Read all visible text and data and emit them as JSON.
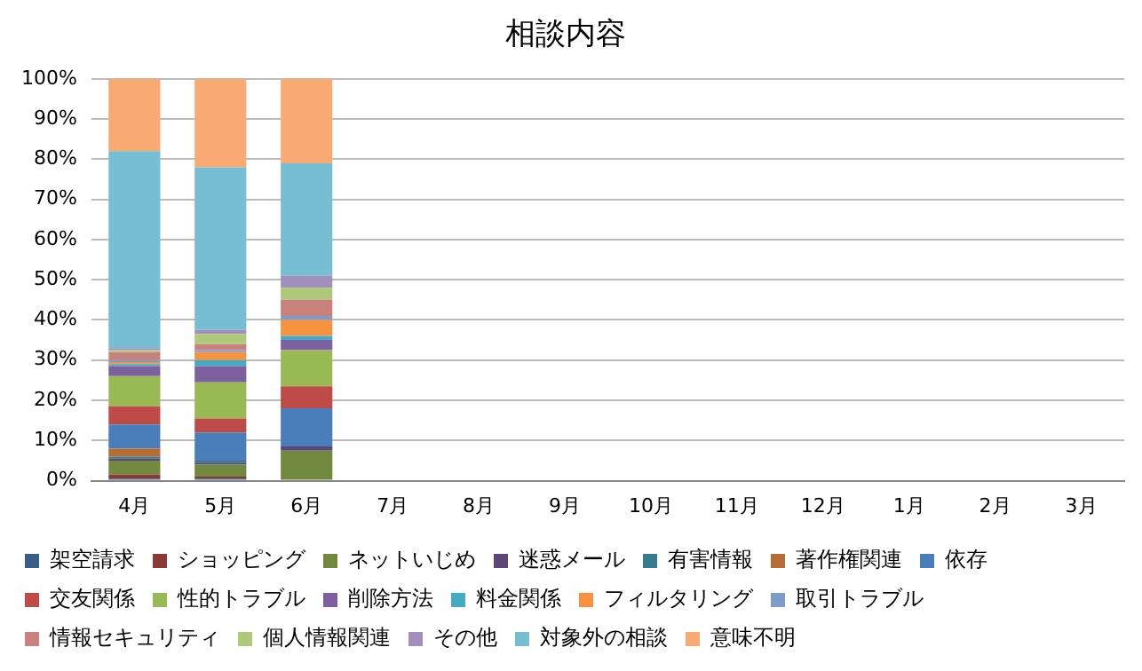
{
  "chart_data": {
    "type": "bar",
    "title": "相談内容",
    "stacked": true,
    "legend": "bottom",
    "grid": "y",
    "categories": [
      "4月",
      "5月",
      "6月",
      "7月",
      "8月",
      "9月",
      "10月",
      "11月",
      "12月",
      "1月",
      "2月",
      "3月"
    ],
    "ylim": [
      0,
      100
    ],
    "yticks": [
      {
        "value": 0,
        "label": "0%"
      },
      {
        "value": 10,
        "label": "10%"
      },
      {
        "value": 20,
        "label": "20%"
      },
      {
        "value": 30,
        "label": "30%"
      },
      {
        "value": 40,
        "label": "40%"
      },
      {
        "value": 50,
        "label": "50%"
      },
      {
        "value": 60,
        "label": "60%"
      },
      {
        "value": 70,
        "label": "70%"
      },
      {
        "value": 80,
        "label": "80%"
      },
      {
        "value": 90,
        "label": "90%"
      },
      {
        "value": 100,
        "label": "100%"
      }
    ],
    "series": [
      {
        "name": "架空請求",
        "color": "#385d8a",
        "values": [
          0.5,
          0.5,
          0,
          null,
          null,
          null,
          null,
          null,
          null,
          null,
          null,
          null
        ]
      },
      {
        "name": "ショッピング",
        "color": "#8c3836",
        "values": [
          1,
          0.5,
          0,
          null,
          null,
          null,
          null,
          null,
          null,
          null,
          null,
          null
        ]
      },
      {
        "name": "ネットいじめ",
        "color": "#71893f",
        "values": [
          3.5,
          3,
          7.5,
          null,
          null,
          null,
          null,
          null,
          null,
          null,
          null,
          null
        ]
      },
      {
        "name": "迷惑メール",
        "color": "#5c4776",
        "values": [
          0.5,
          0.5,
          1,
          null,
          null,
          null,
          null,
          null,
          null,
          null,
          null,
          null
        ]
      },
      {
        "name": "有害情報",
        "color": "#357d91",
        "values": [
          0.5,
          0.5,
          0,
          null,
          null,
          null,
          null,
          null,
          null,
          null,
          null,
          null
        ]
      },
      {
        "name": "著作権関連",
        "color": "#b66d31",
        "values": [
          2,
          0,
          0,
          null,
          null,
          null,
          null,
          null,
          null,
          null,
          null,
          null
        ]
      },
      {
        "name": "依存",
        "color": "#4a7ebb",
        "values": [
          6,
          7,
          9.5,
          null,
          null,
          null,
          null,
          null,
          null,
          null,
          null,
          null
        ]
      },
      {
        "name": "交友関係",
        "color": "#be4b48",
        "values": [
          4.5,
          3.5,
          5.5,
          null,
          null,
          null,
          null,
          null,
          null,
          null,
          null,
          null
        ]
      },
      {
        "name": "性的トラブル",
        "color": "#98b954",
        "values": [
          7.5,
          9,
          9,
          null,
          null,
          null,
          null,
          null,
          null,
          null,
          null,
          null
        ]
      },
      {
        "name": "削除方法",
        "color": "#7d60a0",
        "values": [
          2.5,
          4,
          2.5,
          null,
          null,
          null,
          null,
          null,
          null,
          null,
          null,
          null
        ]
      },
      {
        "name": "料金関係",
        "color": "#46aac5",
        "values": [
          0.5,
          1.5,
          1,
          null,
          null,
          null,
          null,
          null,
          null,
          null,
          null,
          null
        ]
      },
      {
        "name": "フィルタリング",
        "color": "#f69240",
        "values": [
          0.5,
          2,
          4,
          null,
          null,
          null,
          null,
          null,
          null,
          null,
          null,
          null
        ]
      },
      {
        "name": "取引トラブル",
        "color": "#7e9cc7",
        "values": [
          0.5,
          0.5,
          1,
          null,
          null,
          null,
          null,
          null,
          null,
          null,
          null,
          null
        ]
      },
      {
        "name": "情報セキュリティ",
        "color": "#c9817e",
        "values": [
          2,
          1.5,
          4,
          null,
          null,
          null,
          null,
          null,
          null,
          null,
          null,
          null
        ]
      },
      {
        "name": "個人情報関連",
        "color": "#afc97a",
        "values": [
          0.5,
          2.5,
          3,
          null,
          null,
          null,
          null,
          null,
          null,
          null,
          null,
          null
        ]
      },
      {
        "name": "その他",
        "color": "#a18fbc",
        "values": [
          0.5,
          1,
          3,
          null,
          null,
          null,
          null,
          null,
          null,
          null,
          null,
          null
        ]
      },
      {
        "name": "対象外の相談",
        "color": "#77bdd3",
        "values": [
          49,
          40.5,
          28,
          null,
          null,
          null,
          null,
          null,
          null,
          null,
          null,
          null
        ]
      },
      {
        "name": "意味不明",
        "color": "#f9aa72",
        "values": [
          18,
          22,
          21,
          null,
          null,
          null,
          null,
          null,
          null,
          null,
          null,
          null
        ]
      }
    ]
  }
}
